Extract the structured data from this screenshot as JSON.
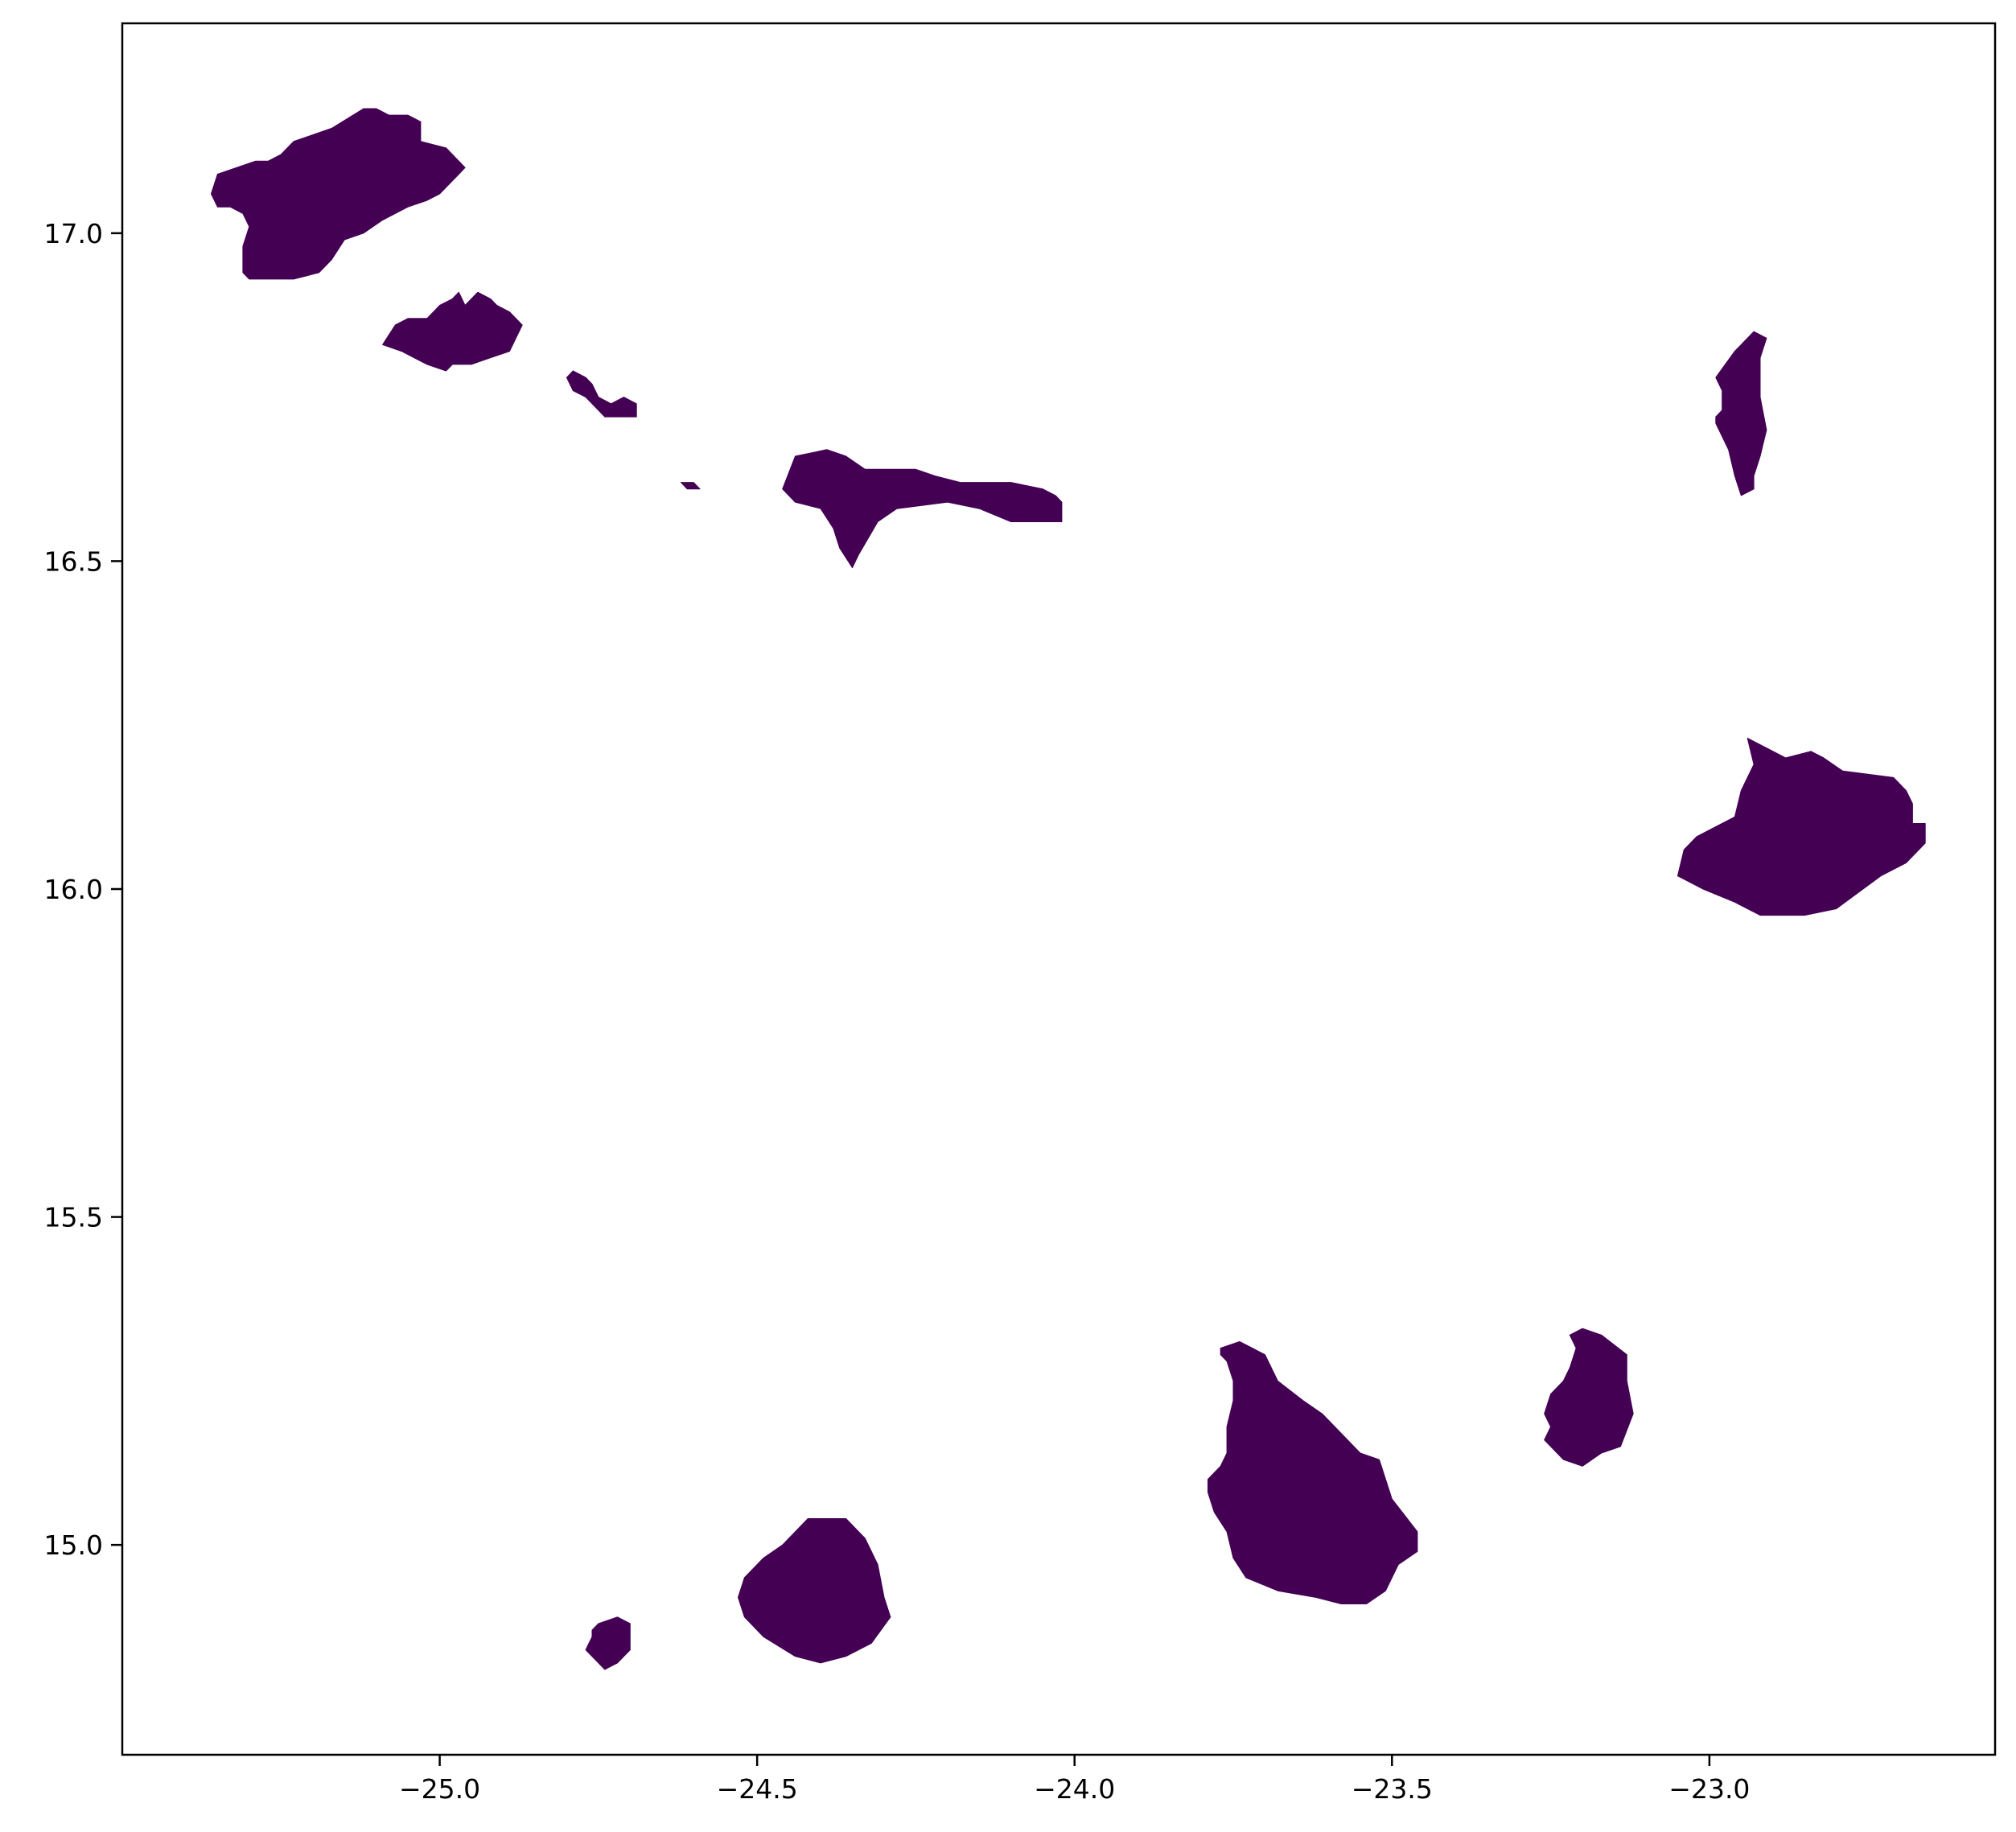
{
  "map": {
    "fill_color": "#440154",
    "frame_color": "#000000",
    "background": "#ffffff",
    "x_range": [
      -25.5,
      -22.55
    ],
    "y_range": [
      14.68,
      17.32
    ],
    "x_ticks": [
      {
        "value": -25.0,
        "label": "−25.0"
      },
      {
        "value": -24.5,
        "label": "−24.5"
      },
      {
        "value": -24.0,
        "label": "−24.0"
      },
      {
        "value": -23.5,
        "label": "−23.5"
      },
      {
        "value": -23.0,
        "label": "−23.0"
      }
    ],
    "y_ticks": [
      {
        "value": 15.0,
        "label": "15.0"
      },
      {
        "value": 15.5,
        "label": "15.5"
      },
      {
        "value": 16.0,
        "label": "16.0"
      },
      {
        "value": 16.5,
        "label": "16.5"
      },
      {
        "value": 17.0,
        "label": "17.0"
      }
    ],
    "islands": [
      {
        "id": "santo-antao",
        "coords": [
          [
            -25.36,
            17.06
          ],
          [
            -25.35,
            17.04
          ],
          [
            -25.33,
            17.04
          ],
          [
            -25.31,
            17.03
          ],
          [
            -25.3,
            17.01
          ],
          [
            -25.31,
            16.98
          ],
          [
            -25.31,
            16.94
          ],
          [
            -25.3,
            16.93
          ],
          [
            -25.29,
            16.93
          ],
          [
            -25.27,
            16.93
          ],
          [
            -25.23,
            16.93
          ],
          [
            -25.19,
            16.94
          ],
          [
            -25.17,
            16.96
          ],
          [
            -25.15,
            16.99
          ],
          [
            -25.12,
            17.0
          ],
          [
            -25.09,
            17.02
          ],
          [
            -25.05,
            17.04
          ],
          [
            -25.02,
            17.05
          ],
          [
            -25.0,
            17.06
          ],
          [
            -24.99,
            17.07
          ],
          [
            -24.98,
            17.08
          ],
          [
            -24.97,
            17.09
          ],
          [
            -24.96,
            17.1
          ],
          [
            -24.97,
            17.11
          ],
          [
            -24.99,
            17.13
          ],
          [
            -25.03,
            17.14
          ],
          [
            -25.03,
            17.17
          ],
          [
            -25.05,
            17.18
          ],
          [
            -25.08,
            17.18
          ],
          [
            -25.1,
            17.19
          ],
          [
            -25.12,
            17.19
          ],
          [
            -25.17,
            17.16
          ],
          [
            -25.2,
            17.15
          ],
          [
            -25.23,
            17.14
          ],
          [
            -25.25,
            17.12
          ],
          [
            -25.27,
            17.11
          ],
          [
            -25.29,
            17.11
          ],
          [
            -25.32,
            17.1
          ],
          [
            -25.35,
            17.09
          ]
        ]
      },
      {
        "id": "sao-vicente",
        "coords": [
          [
            -25.09,
            16.83
          ],
          [
            -25.07,
            16.86
          ],
          [
            -25.05,
            16.87
          ],
          [
            -25.02,
            16.87
          ],
          [
            -25.01,
            16.88
          ],
          [
            -25.0,
            16.89
          ],
          [
            -24.98,
            16.9
          ],
          [
            -24.97,
            16.91
          ],
          [
            -24.96,
            16.89
          ],
          [
            -24.95,
            16.9
          ],
          [
            -24.94,
            16.91
          ],
          [
            -24.92,
            16.9
          ],
          [
            -24.91,
            16.89
          ],
          [
            -24.89,
            16.88
          ],
          [
            -24.87,
            16.86
          ],
          [
            -24.88,
            16.84
          ],
          [
            -24.89,
            16.82
          ],
          [
            -24.92,
            16.81
          ],
          [
            -24.95,
            16.8
          ],
          [
            -24.98,
            16.8
          ],
          [
            -24.99,
            16.79
          ],
          [
            -25.02,
            16.8
          ],
          [
            -25.06,
            16.82
          ]
        ]
      },
      {
        "id": "santa-luzia",
        "coords": [
          [
            -24.8,
            16.78
          ],
          [
            -24.79,
            16.79
          ],
          [
            -24.77,
            16.78
          ],
          [
            -24.76,
            16.77
          ],
          [
            -24.75,
            16.75
          ],
          [
            -24.73,
            16.74
          ],
          [
            -24.71,
            16.75
          ],
          [
            -24.69,
            16.74
          ],
          [
            -24.69,
            16.72
          ],
          [
            -24.71,
            16.72
          ],
          [
            -24.74,
            16.72
          ],
          [
            -24.75,
            16.73
          ],
          [
            -24.77,
            16.75
          ],
          [
            -24.79,
            16.76
          ]
        ]
      },
      {
        "id": "raso",
        "coords": [
          [
            -24.62,
            16.62
          ],
          [
            -24.6,
            16.62
          ],
          [
            -24.59,
            16.61
          ],
          [
            -24.61,
            16.61
          ]
        ]
      },
      {
        "id": "sao-nicolau",
        "coords": [
          [
            -24.44,
            16.66
          ],
          [
            -24.39,
            16.67
          ],
          [
            -24.36,
            16.66
          ],
          [
            -24.33,
            16.64
          ],
          [
            -24.29,
            16.64
          ],
          [
            -24.25,
            16.64
          ],
          [
            -24.22,
            16.63
          ],
          [
            -24.18,
            16.62
          ],
          [
            -24.1,
            16.62
          ],
          [
            -24.05,
            16.61
          ],
          [
            -24.03,
            16.6
          ],
          [
            -24.02,
            16.59
          ],
          [
            -24.02,
            16.56
          ],
          [
            -24.1,
            16.56
          ],
          [
            -24.15,
            16.58
          ],
          [
            -24.2,
            16.59
          ],
          [
            -24.28,
            16.58
          ],
          [
            -24.31,
            16.56
          ],
          [
            -24.34,
            16.51
          ],
          [
            -24.35,
            16.49
          ],
          [
            -24.37,
            16.52
          ],
          [
            -24.38,
            16.55
          ],
          [
            -24.4,
            16.58
          ],
          [
            -24.44,
            16.59
          ],
          [
            -24.46,
            16.61
          ]
        ]
      },
      {
        "id": "sal",
        "coords": [
          [
            -22.96,
            16.82
          ],
          [
            -22.93,
            16.85
          ],
          [
            -22.91,
            16.84
          ],
          [
            -22.92,
            16.81
          ],
          [
            -22.92,
            16.75
          ],
          [
            -22.91,
            16.7
          ],
          [
            -22.92,
            16.66
          ],
          [
            -22.93,
            16.63
          ],
          [
            -22.93,
            16.61
          ],
          [
            -22.95,
            16.6
          ],
          [
            -22.96,
            16.63
          ],
          [
            -22.97,
            16.67
          ],
          [
            -22.99,
            16.71
          ],
          [
            -22.99,
            16.72
          ],
          [
            -22.98,
            16.73
          ],
          [
            -22.98,
            16.76
          ],
          [
            -22.99,
            16.78
          ]
        ]
      },
      {
        "id": "boa-vista",
        "coords": [
          [
            -22.94,
            16.23
          ],
          [
            -22.88,
            16.2
          ],
          [
            -22.84,
            16.21
          ],
          [
            -22.82,
            16.2
          ],
          [
            -22.79,
            16.18
          ],
          [
            -22.71,
            16.17
          ],
          [
            -22.69,
            16.15
          ],
          [
            -22.68,
            16.13
          ],
          [
            -22.68,
            16.1
          ],
          [
            -22.66,
            16.1
          ],
          [
            -22.66,
            16.07
          ],
          [
            -22.69,
            16.04
          ],
          [
            -22.73,
            16.02
          ],
          [
            -22.8,
            15.97
          ],
          [
            -22.85,
            15.96
          ],
          [
            -22.92,
            15.96
          ],
          [
            -22.96,
            15.98
          ],
          [
            -23.01,
            16.0
          ],
          [
            -23.03,
            16.01
          ],
          [
            -23.05,
            16.02
          ],
          [
            -23.04,
            16.06
          ],
          [
            -23.02,
            16.08
          ],
          [
            -22.96,
            16.11
          ],
          [
            -22.95,
            16.15
          ],
          [
            -22.93,
            16.19
          ]
        ]
      },
      {
        "id": "santiago",
        "coords": [
          [
            -23.77,
            15.3
          ],
          [
            -23.74,
            15.31
          ],
          [
            -23.72,
            15.3
          ],
          [
            -23.7,
            15.29
          ],
          [
            -23.68,
            15.25
          ],
          [
            -23.64,
            15.22
          ],
          [
            -23.61,
            15.2
          ],
          [
            -23.57,
            15.16
          ],
          [
            -23.55,
            15.14
          ],
          [
            -23.52,
            15.13
          ],
          [
            -23.5,
            15.07
          ],
          [
            -23.46,
            15.02
          ],
          [
            -23.46,
            14.99
          ],
          [
            -23.49,
            14.97
          ],
          [
            -23.51,
            14.93
          ],
          [
            -23.54,
            14.91
          ],
          [
            -23.58,
            14.91
          ],
          [
            -23.62,
            14.92
          ],
          [
            -23.68,
            14.93
          ],
          [
            -23.73,
            14.95
          ],
          [
            -23.75,
            14.98
          ],
          [
            -23.76,
            15.02
          ],
          [
            -23.78,
            15.05
          ],
          [
            -23.79,
            15.08
          ],
          [
            -23.79,
            15.1
          ],
          [
            -23.77,
            15.12
          ],
          [
            -23.76,
            15.14
          ],
          [
            -23.76,
            15.18
          ],
          [
            -23.75,
            15.22
          ],
          [
            -23.75,
            15.25
          ],
          [
            -23.76,
            15.28
          ],
          [
            -23.77,
            15.29
          ]
        ]
      },
      {
        "id": "maio",
        "coords": [
          [
            -23.2,
            15.33
          ],
          [
            -23.17,
            15.32
          ],
          [
            -23.13,
            15.29
          ],
          [
            -23.13,
            15.25
          ],
          [
            -23.12,
            15.2
          ],
          [
            -23.14,
            15.15
          ],
          [
            -23.17,
            15.14
          ],
          [
            -23.2,
            15.12
          ],
          [
            -23.23,
            15.13
          ],
          [
            -23.26,
            15.16
          ],
          [
            -23.25,
            15.18
          ],
          [
            -23.26,
            15.2
          ],
          [
            -23.25,
            15.23
          ],
          [
            -23.23,
            15.25
          ],
          [
            -23.22,
            15.27
          ],
          [
            -23.21,
            15.3
          ],
          [
            -23.22,
            15.32
          ]
        ]
      },
      {
        "id": "fogo",
        "coords": [
          [
            -24.42,
            15.04
          ],
          [
            -24.36,
            15.04
          ],
          [
            -24.33,
            15.01
          ],
          [
            -24.31,
            14.97
          ],
          [
            -24.3,
            14.92
          ],
          [
            -24.29,
            14.89
          ],
          [
            -24.32,
            14.85
          ],
          [
            -24.36,
            14.83
          ],
          [
            -24.4,
            14.82
          ],
          [
            -24.44,
            14.83
          ],
          [
            -24.49,
            14.86
          ],
          [
            -24.52,
            14.89
          ],
          [
            -24.53,
            14.92
          ],
          [
            -24.52,
            14.95
          ],
          [
            -24.49,
            14.98
          ],
          [
            -24.46,
            15.0
          ]
        ]
      },
      {
        "id": "brava",
        "coords": [
          [
            -24.75,
            14.88
          ],
          [
            -24.72,
            14.89
          ],
          [
            -24.7,
            14.88
          ],
          [
            -24.7,
            14.84
          ],
          [
            -24.72,
            14.82
          ],
          [
            -24.74,
            14.81
          ],
          [
            -24.75,
            14.82
          ],
          [
            -24.77,
            14.84
          ],
          [
            -24.76,
            14.86
          ],
          [
            -24.76,
            14.87
          ]
        ]
      }
    ]
  }
}
